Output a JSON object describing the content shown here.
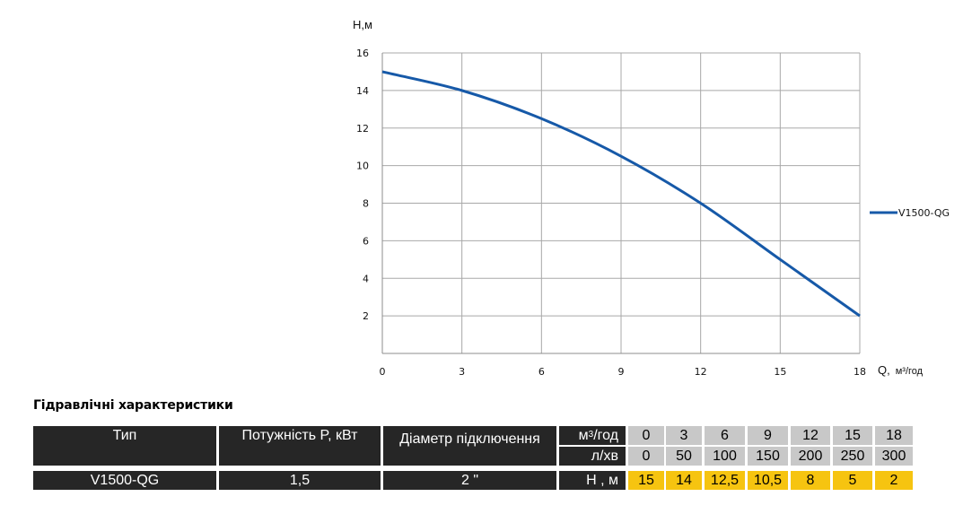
{
  "chart_data": {
    "type": "line",
    "ylabel": "Н,м",
    "xlabel_prefix": "Q,",
    "xlabel_unit": "м³/год",
    "xlim": [
      0,
      18
    ],
    "ylim": [
      0,
      16
    ],
    "x_ticks": [
      "0",
      "3",
      "6",
      "9",
      "12",
      "15",
      "18"
    ],
    "y_ticks": [
      "2",
      "4",
      "6",
      "8",
      "10",
      "12",
      "14",
      "16"
    ],
    "grid": true,
    "legend_position": "right",
    "series": [
      {
        "name": "V1500-QG",
        "color": "#1659a8",
        "x": [
          0,
          3,
          6,
          9,
          12,
          15,
          18
        ],
        "y": [
          15,
          14,
          12.5,
          10.5,
          8,
          5,
          2
        ]
      }
    ]
  },
  "section_title": "Гідравлічні характеристики",
  "table": {
    "col_type": "Тип",
    "col_power": "Потужність  P, кВт",
    "col_diameter": "Діаметр підключення",
    "unit_m3_base": "м",
    "unit_m3_sup": "3",
    "unit_m3_rest": "/год",
    "unit_lmin": "л/хв",
    "unit_head": "Н , м",
    "flow_m3h": [
      "0",
      "3",
      "6",
      "9",
      "12",
      "15",
      "18"
    ],
    "flow_lmin": [
      "0",
      "50",
      "100",
      "150",
      "200",
      "250",
      "300"
    ],
    "row": {
      "type": "V1500-QG",
      "power": "1,5",
      "diameter": "2 \"",
      "head": [
        "15",
        "14",
        "12,5",
        "10,5",
        "8",
        "5",
        "2"
      ]
    },
    "colors": {
      "dark": "#262626",
      "gray": "#c8c8c8",
      "yellow": "#f6c410"
    }
  }
}
